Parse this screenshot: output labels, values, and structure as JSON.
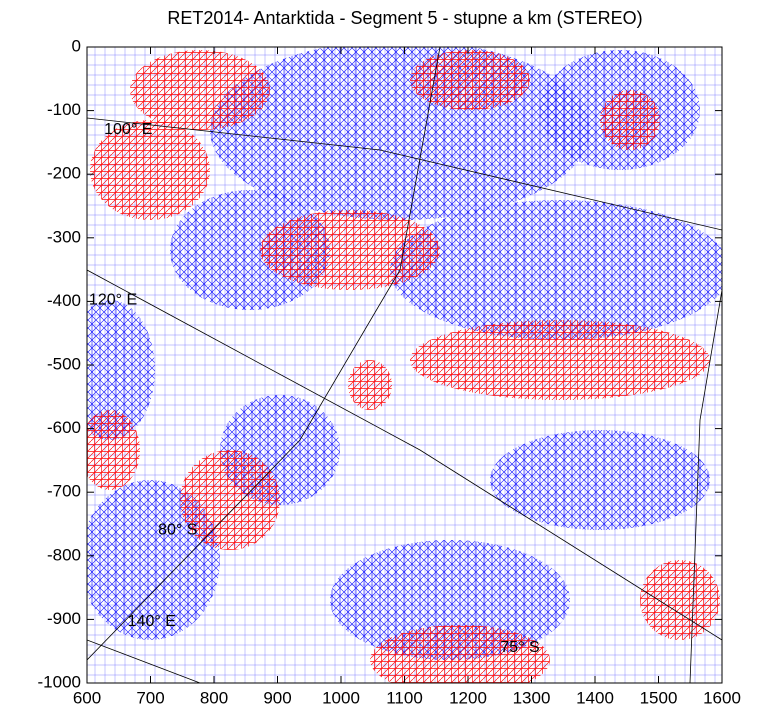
{
  "chart_data": {
    "type": "quiver",
    "title": "RET2014-  Antarktida - Segment 5 - stupne a km (STEREO)",
    "xlim": [
      600,
      1600
    ],
    "xticks": [
      600,
      700,
      800,
      900,
      1000,
      1100,
      1200,
      1300,
      1400,
      1500,
      1600
    ],
    "ylim": [
      -1000,
      0
    ],
    "yticks": [
      0,
      -100,
      -200,
      -300,
      -400,
      -500,
      -600,
      -700,
      -800,
      -900,
      -1000
    ],
    "annotations": [
      {
        "text": "100° E",
        "x": 665,
        "y": -130
      },
      {
        "text": "120° E",
        "x": 641,
        "y": -398
      },
      {
        "text": "80° S",
        "x": 743,
        "y": -760
      },
      {
        "text": "140° E",
        "x": 702,
        "y": -904
      },
      {
        "text": "75° S",
        "x": 1282,
        "y": -945
      }
    ],
    "colors": [
      "#0000ff",
      "#ff0000"
    ]
  }
}
